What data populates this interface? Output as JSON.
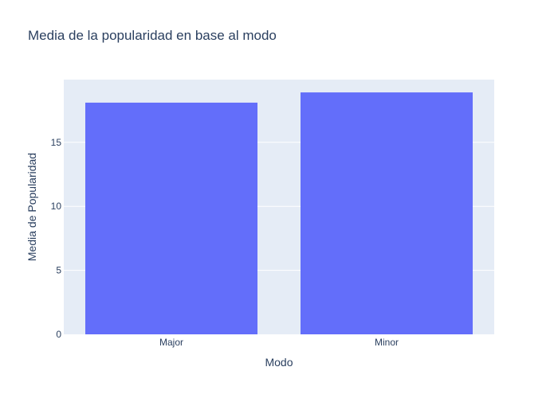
{
  "chart_data": {
    "type": "bar",
    "title": "Media de la popularidad en base al modo",
    "xlabel": "Modo",
    "ylabel": "Media de Popularidad",
    "categories": [
      "Major",
      "Minor"
    ],
    "values": [
      18.1,
      18.9
    ],
    "ylim": [
      0,
      19.9
    ],
    "yticks": [
      0,
      5,
      10,
      15
    ],
    "grid": true,
    "colors": {
      "bar": "#636efa",
      "plot_background": "#e5ecf6",
      "gridline": "#ffffff",
      "text": "#2a3f5f"
    }
  }
}
